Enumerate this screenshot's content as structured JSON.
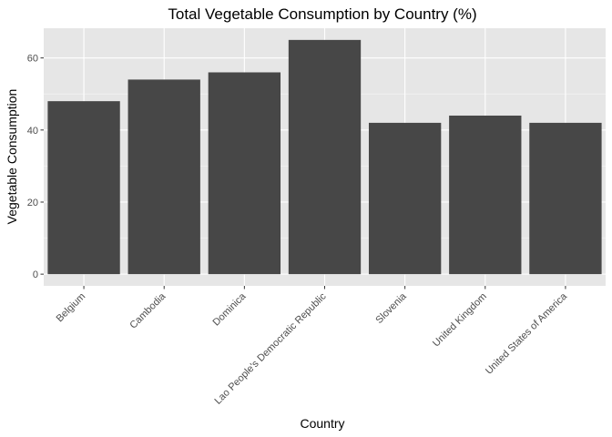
{
  "chart_data": {
    "type": "bar",
    "title": "Total Vegetable Consumption by Country (%)",
    "xlabel": "Country",
    "ylabel": "Vegetable Consumption",
    "categories": [
      "Belgium",
      "Cambodia",
      "Dominica",
      "Lao People's Democratic Republic",
      "Slovenia",
      "United Kingdom",
      "United States of America"
    ],
    "values": [
      48,
      54,
      56,
      65,
      42,
      44,
      42
    ],
    "ylim": [
      -3.25,
      68.25
    ],
    "y_ticks": [
      0,
      20,
      40,
      60
    ],
    "grid": true,
    "legend": "none",
    "colors": {
      "bar": "#474747",
      "panel_background": "#e6e6e6",
      "grid_major": "#ffffff",
      "tick_label": "#4d4d4d"
    }
  }
}
